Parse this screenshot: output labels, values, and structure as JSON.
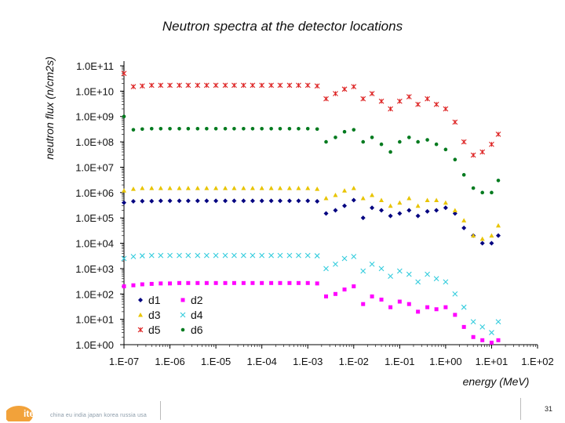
{
  "slide": {
    "title": "Neutron spectra at the detector locations",
    "footer_text": "china eu india japan korea russia usa",
    "logo_text": "iter",
    "page_number": "31"
  },
  "colors": {
    "d1": "#000080",
    "d2": "#ff00ff",
    "d3": "#e8c400",
    "d4": "#33ccdd",
    "d5": "#dd2222",
    "d6": "#007a1e"
  },
  "chart_data": {
    "type": "scatter",
    "title": "Neutron spectra at the detector locations",
    "xlabel": "energy (MeV)",
    "ylabel": "neutron flux (n/cm2s)",
    "x_scale": "log",
    "y_scale": "log",
    "xlim": [
      1e-07,
      100
    ],
    "ylim": [
      1,
      100000000000.0
    ],
    "x_tick_labels": [
      "1.E-07",
      "1.E-06",
      "1.E-05",
      "1.E-04",
      "1.E-03",
      "1.E-02",
      "1.E-01",
      "1.E+00",
      "1.E+01",
      "1.E+02"
    ],
    "y_tick_labels": [
      "1.0E+00",
      "1.0E+01",
      "1.0E+02",
      "1.0E+03",
      "1.0E+04",
      "1.0E+05",
      "1.0E+06",
      "1.0E+07",
      "1.0E+08",
      "1.0E+09",
      "1.0E+10",
      "1.0E+11"
    ],
    "grid": false,
    "legend_position": "bottom-left",
    "series": [
      {
        "name": "d1",
        "marker": "diamond",
        "x": [
          1e-07,
          1.6e-07,
          2.5e-07,
          4e-07,
          6.3e-07,
          1e-06,
          1.6e-06,
          2.5e-06,
          4e-06,
          6.3e-06,
          1e-05,
          1.6e-05,
          2.5e-05,
          4e-05,
          6.3e-05,
          0.0001,
          0.00016,
          0.00025,
          0.0004,
          0.00063,
          0.001,
          0.0016,
          0.0025,
          0.004,
          0.0063,
          0.01,
          0.016,
          0.025,
          0.04,
          0.063,
          0.1,
          0.16,
          0.25,
          0.4,
          0.63,
          1,
          1.6,
          2.5,
          4,
          6.3,
          10,
          14
        ],
        "y": [
          400000.0,
          450000.0,
          460000.0,
          460000.0,
          470000.0,
          470000.0,
          470000.0,
          470000.0,
          470000.0,
          470000.0,
          470000.0,
          470000.0,
          470000.0,
          470000.0,
          470000.0,
          470000.0,
          470000.0,
          470000.0,
          470000.0,
          470000.0,
          470000.0,
          450000.0,
          150000.0,
          200000.0,
          300000.0,
          500000.0,
          100000.0,
          250000.0,
          200000.0,
          120000.0,
          150000.0,
          200000.0,
          120000.0,
          180000.0,
          200000.0,
          250000.0,
          150000.0,
          40000.0,
          20000.0,
          10000.0,
          10000.0,
          20000.0
        ]
      },
      {
        "name": "d2",
        "marker": "square",
        "x": [
          1e-07,
          1.6e-07,
          2.5e-07,
          4e-07,
          6.3e-07,
          1e-06,
          1.6e-06,
          2.5e-06,
          4e-06,
          6.3e-06,
          1e-05,
          1.6e-05,
          2.5e-05,
          4e-05,
          6.3e-05,
          0.0001,
          0.00016,
          0.00025,
          0.0004,
          0.00063,
          0.001,
          0.0016,
          0.0025,
          0.004,
          0.0063,
          0.01,
          0.016,
          0.025,
          0.04,
          0.063,
          0.1,
          0.16,
          0.25,
          0.4,
          0.63,
          1,
          1.6,
          2.5,
          4,
          6.3,
          10,
          14
        ],
        "y": [
          200,
          220,
          240,
          250,
          260,
          260,
          270,
          270,
          270,
          270,
          270,
          270,
          270,
          270,
          270,
          270,
          270,
          270,
          270,
          270,
          270,
          260,
          80,
          100,
          150,
          200,
          40,
          80,
          60,
          30,
          50,
          40,
          20,
          30,
          25,
          30,
          15,
          5,
          2,
          1.5,
          1.2,
          1.5
        ]
      },
      {
        "name": "d3",
        "marker": "triangle",
        "x": [
          1e-07,
          1.6e-07,
          2.5e-07,
          4e-07,
          6.3e-07,
          1e-06,
          1.6e-06,
          2.5e-06,
          4e-06,
          6.3e-06,
          1e-05,
          1.6e-05,
          2.5e-05,
          4e-05,
          6.3e-05,
          0.0001,
          0.00016,
          0.00025,
          0.0004,
          0.00063,
          0.001,
          0.0016,
          0.0025,
          0.004,
          0.0063,
          0.01,
          0.016,
          0.025,
          0.04,
          0.063,
          0.1,
          0.16,
          0.25,
          0.4,
          0.63,
          1,
          1.6,
          2.5,
          4,
          6.3,
          10,
          14
        ],
        "y": [
          1200000.0,
          1400000.0,
          1500000.0,
          1500000.0,
          1500000.0,
          1500000.0,
          1500000.0,
          1500000.0,
          1500000.0,
          1500000.0,
          1500000.0,
          1500000.0,
          1500000.0,
          1500000.0,
          1500000.0,
          1500000.0,
          1500000.0,
          1500000.0,
          1500000.0,
          1500000.0,
          1500000.0,
          1400000.0,
          600000.0,
          800000.0,
          1200000.0,
          1500000.0,
          600000.0,
          800000.0,
          500000.0,
          300000.0,
          400000.0,
          600000.0,
          300000.0,
          500000.0,
          500000.0,
          400000.0,
          200000.0,
          80000.0,
          20000.0,
          15000.0,
          20000.0,
          50000.0
        ]
      },
      {
        "name": "d4",
        "marker": "x",
        "x": [
          1e-07,
          1.6e-07,
          2.5e-07,
          4e-07,
          6.3e-07,
          1e-06,
          1.6e-06,
          2.5e-06,
          4e-06,
          6.3e-06,
          1e-05,
          1.6e-05,
          2.5e-05,
          4e-05,
          6.3e-05,
          0.0001,
          0.00016,
          0.00025,
          0.0004,
          0.00063,
          0.001,
          0.0016,
          0.0025,
          0.004,
          0.0063,
          0.01,
          0.016,
          0.025,
          0.04,
          0.063,
          0.1,
          0.16,
          0.25,
          0.4,
          0.63,
          1,
          1.6,
          2.5,
          4,
          6.3,
          10,
          14
        ],
        "y": [
          2500,
          3000,
          3200,
          3300,
          3300,
          3300,
          3300,
          3300,
          3300,
          3300,
          3300,
          3300,
          3300,
          3300,
          3300,
          3300,
          3300,
          3300,
          3300,
          3300,
          3300,
          3200,
          1000,
          1500,
          2500,
          3000,
          800,
          1500,
          1000,
          500,
          800,
          600,
          300,
          600,
          400,
          300,
          100,
          30,
          8,
          5,
          3,
          8
        ]
      },
      {
        "name": "d5",
        "marker": "asterisk",
        "x": [
          1e-07,
          1.6e-07,
          2.5e-07,
          4e-07,
          6.3e-07,
          1e-06,
          1.6e-06,
          2.5e-06,
          4e-06,
          6.3e-06,
          1e-05,
          1.6e-05,
          2.5e-05,
          4e-05,
          6.3e-05,
          0.0001,
          0.00016,
          0.00025,
          0.0004,
          0.00063,
          0.001,
          0.0016,
          0.0025,
          0.004,
          0.0063,
          0.01,
          0.016,
          0.025,
          0.04,
          0.063,
          0.1,
          0.16,
          0.25,
          0.4,
          0.63,
          1,
          1.6,
          2.5,
          4,
          6.3,
          10,
          14
        ],
        "y": [
          50000000000.0,
          15000000000.0,
          16000000000.0,
          17000000000.0,
          17000000000.0,
          17000000000.0,
          17000000000.0,
          17000000000.0,
          17000000000.0,
          17000000000.0,
          17000000000.0,
          17000000000.0,
          17000000000.0,
          17000000000.0,
          17000000000.0,
          17000000000.0,
          17000000000.0,
          17000000000.0,
          17000000000.0,
          17000000000.0,
          17000000000.0,
          16000000000.0,
          5000000000.0,
          8000000000.0,
          12000000000.0,
          15000000000.0,
          5000000000.0,
          8000000000.0,
          4000000000.0,
          2000000000.0,
          4000000000.0,
          6000000000.0,
          3000000000.0,
          5000000000.0,
          3000000000.0,
          2000000000.0,
          600000000.0,
          100000000.0,
          30000000.0,
          40000000.0,
          80000000.0,
          200000000.0
        ]
      },
      {
        "name": "d6",
        "marker": "circle",
        "x": [
          1e-07,
          1.6e-07,
          2.5e-07,
          4e-07,
          6.3e-07,
          1e-06,
          1.6e-06,
          2.5e-06,
          4e-06,
          6.3e-06,
          1e-05,
          1.6e-05,
          2.5e-05,
          4e-05,
          6.3e-05,
          0.0001,
          0.00016,
          0.00025,
          0.0004,
          0.00063,
          0.001,
          0.0016,
          0.0025,
          0.004,
          0.0063,
          0.01,
          0.016,
          0.025,
          0.04,
          0.063,
          0.1,
          0.16,
          0.25,
          0.4,
          0.63,
          1,
          1.6,
          2.5,
          4,
          6.3,
          10,
          14
        ],
        "y": [
          1000000000.0,
          300000000.0,
          320000000.0,
          330000000.0,
          330000000.0,
          330000000.0,
          330000000.0,
          330000000.0,
          330000000.0,
          330000000.0,
          330000000.0,
          330000000.0,
          330000000.0,
          330000000.0,
          330000000.0,
          330000000.0,
          330000000.0,
          330000000.0,
          330000000.0,
          330000000.0,
          330000000.0,
          320000000.0,
          100000000.0,
          150000000.0,
          250000000.0,
          300000000.0,
          100000000.0,
          150000000.0,
          80000000.0,
          40000000.0,
          100000000.0,
          150000000.0,
          100000000.0,
          120000000.0,
          80000000.0,
          50000000.0,
          20000000.0,
          5000000.0,
          1500000.0,
          1000000.0,
          1000000.0,
          3000000.0
        ]
      }
    ]
  }
}
